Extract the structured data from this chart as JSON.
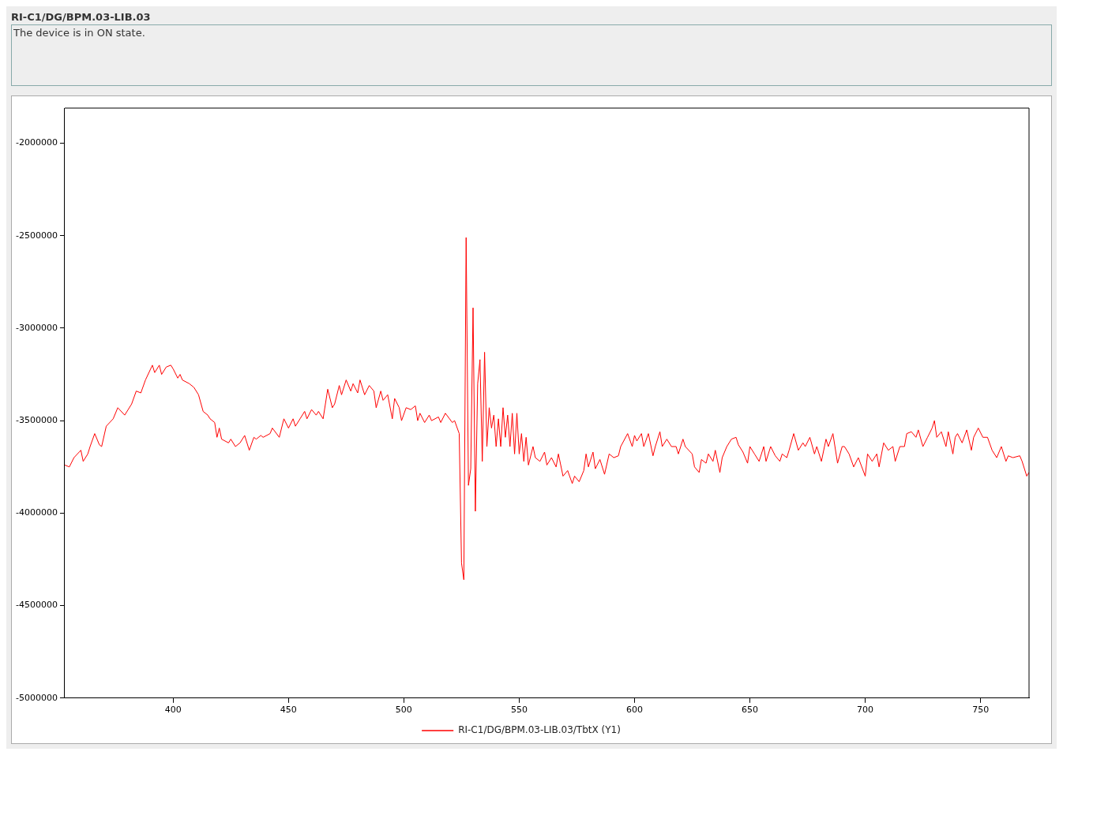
{
  "chart_data": {
    "type": "line",
    "title": "RI-C1/DG/BPM.03-LIB.03",
    "annotations": [
      "The device is in ON state."
    ],
    "x": [
      353,
      355,
      357,
      360,
      361,
      363,
      364,
      366,
      368,
      369,
      371,
      374,
      376,
      379,
      382,
      384,
      386,
      388,
      391,
      392,
      394,
      395,
      397,
      399,
      400,
      402,
      403,
      404,
      407,
      409,
      411,
      413,
      415,
      416,
      418,
      419,
      420,
      421,
      424,
      425,
      427,
      429,
      431,
      433,
      435,
      436,
      438,
      439,
      442,
      443,
      446,
      448,
      450,
      452,
      453,
      455,
      457,
      458,
      460,
      462,
      463,
      465,
      467,
      469,
      470,
      472,
      473,
      475,
      477,
      478,
      480,
      481,
      483,
      485,
      487,
      488,
      490,
      491,
      493,
      495,
      496,
      498,
      499,
      501,
      503,
      505,
      506,
      507,
      509,
      511,
      512,
      515,
      516,
      518,
      521,
      522,
      524,
      525,
      526,
      527,
      528,
      529,
      530,
      531,
      532,
      533,
      534,
      535,
      536,
      537,
      538,
      539,
      540,
      541,
      542,
      543,
      544,
      545,
      546,
      547,
      548,
      549,
      550,
      551,
      552,
      553,
      554,
      556,
      557,
      559,
      561,
      562,
      564,
      566,
      567,
      569,
      571,
      573,
      574,
      576,
      578,
      579,
      580,
      582,
      583,
      585,
      587,
      589,
      591,
      593,
      594,
      597,
      599,
      600,
      601,
      603,
      604,
      606,
      608,
      609,
      611,
      612,
      614,
      616,
      618,
      619,
      621,
      622,
      625,
      626,
      628,
      629,
      631,
      632,
      634,
      635,
      637,
      638,
      640,
      642,
      644,
      645,
      647,
      649,
      650,
      652,
      654,
      656,
      657,
      659,
      661,
      663,
      664,
      666,
      667,
      669,
      671,
      673,
      674,
      676,
      678,
      679,
      681,
      683,
      684,
      686,
      688,
      690,
      691,
      693,
      695,
      697,
      700,
      701,
      703,
      705,
      706,
      708,
      710,
      712,
      713,
      715,
      717,
      718,
      720,
      722,
      723,
      725,
      727,
      729,
      730,
      731,
      733,
      735,
      736,
      738,
      739,
      740,
      742,
      744,
      746,
      747,
      749,
      751,
      753,
      755,
      757,
      759,
      761,
      762,
      764,
      767,
      768,
      770,
      771
    ],
    "series": [
      {
        "name": "RI-C1/DG/BPM.03-LIB.03/TbtX (Y1)",
        "color": "#ff0000",
        "values": [
          -3740000,
          -3750000,
          -3700000,
          -3660000,
          -3720000,
          -3680000,
          -3640000,
          -3570000,
          -3630000,
          -3640000,
          -3530000,
          -3490000,
          -3430000,
          -3470000,
          -3410000,
          -3340000,
          -3350000,
          -3280000,
          -3200000,
          -3240000,
          -3200000,
          -3250000,
          -3210000,
          -3200000,
          -3220000,
          -3270000,
          -3250000,
          -3280000,
          -3300000,
          -3320000,
          -3360000,
          -3450000,
          -3470000,
          -3490000,
          -3510000,
          -3590000,
          -3540000,
          -3600000,
          -3620000,
          -3600000,
          -3640000,
          -3620000,
          -3580000,
          -3660000,
          -3590000,
          -3600000,
          -3580000,
          -3590000,
          -3570000,
          -3540000,
          -3590000,
          -3490000,
          -3540000,
          -3490000,
          -3530000,
          -3490000,
          -3450000,
          -3490000,
          -3440000,
          -3470000,
          -3450000,
          -3490000,
          -3330000,
          -3430000,
          -3410000,
          -3310000,
          -3360000,
          -3280000,
          -3340000,
          -3300000,
          -3350000,
          -3280000,
          -3360000,
          -3310000,
          -3340000,
          -3430000,
          -3340000,
          -3390000,
          -3360000,
          -3490000,
          -3380000,
          -3430000,
          -3500000,
          -3430000,
          -3440000,
          -3420000,
          -3500000,
          -3460000,
          -3510000,
          -3470000,
          -3500000,
          -3480000,
          -3510000,
          -3460000,
          -3510000,
          -3500000,
          -3570000,
          -4270000,
          -4360000,
          -2510000,
          -3850000,
          -3760000,
          -2890000,
          -3990000,
          -3300000,
          -3170000,
          -3720000,
          -3130000,
          -3640000,
          -3430000,
          -3540000,
          -3470000,
          -3640000,
          -3490000,
          -3640000,
          -3430000,
          -3590000,
          -3470000,
          -3640000,
          -3460000,
          -3680000,
          -3460000,
          -3680000,
          -3570000,
          -3720000,
          -3590000,
          -3740000,
          -3640000,
          -3700000,
          -3720000,
          -3670000,
          -3740000,
          -3700000,
          -3750000,
          -3680000,
          -3800000,
          -3770000,
          -3840000,
          -3800000,
          -3830000,
          -3770000,
          -3680000,
          -3750000,
          -3670000,
          -3760000,
          -3710000,
          -3790000,
          -3680000,
          -3700000,
          -3690000,
          -3640000,
          -3570000,
          -3640000,
          -3580000,
          -3610000,
          -3570000,
          -3640000,
          -3570000,
          -3690000,
          -3640000,
          -3560000,
          -3640000,
          -3600000,
          -3640000,
          -3640000,
          -3680000,
          -3600000,
          -3640000,
          -3680000,
          -3750000,
          -3780000,
          -3710000,
          -3730000,
          -3680000,
          -3720000,
          -3660000,
          -3780000,
          -3700000,
          -3640000,
          -3600000,
          -3590000,
          -3630000,
          -3670000,
          -3730000,
          -3640000,
          -3680000,
          -3720000,
          -3640000,
          -3720000,
          -3640000,
          -3690000,
          -3720000,
          -3680000,
          -3700000,
          -3660000,
          -3570000,
          -3660000,
          -3620000,
          -3640000,
          -3590000,
          -3680000,
          -3640000,
          -3720000,
          -3600000,
          -3640000,
          -3570000,
          -3730000,
          -3640000,
          -3640000,
          -3680000,
          -3750000,
          -3700000,
          -3800000,
          -3680000,
          -3720000,
          -3680000,
          -3750000,
          -3620000,
          -3660000,
          -3640000,
          -3720000,
          -3640000,
          -3640000,
          -3570000,
          -3560000,
          -3590000,
          -3550000,
          -3640000,
          -3590000,
          -3540000,
          -3500000,
          -3590000,
          -3560000,
          -3640000,
          -3560000,
          -3680000,
          -3590000,
          -3570000,
          -3620000,
          -3550000,
          -3660000,
          -3590000,
          -3540000,
          -3590000,
          -3590000,
          -3660000,
          -3700000,
          -3640000,
          -3720000,
          -3690000,
          -3700000,
          -3690000,
          -3720000,
          -3800000,
          -3780000
        ]
      }
    ],
    "xlim": [
      353,
      771
    ],
    "xticks": [
      400,
      450,
      500,
      550,
      600,
      650,
      700,
      750
    ],
    "ylim": [
      -5000000,
      -1810000
    ],
    "yticks": [
      -5000000,
      -4500000,
      -4000000,
      -3500000,
      -3000000,
      -2500000,
      -2000000
    ],
    "grid": false,
    "legend": "bottom",
    "marker": "none",
    "line_style": "solid"
  }
}
